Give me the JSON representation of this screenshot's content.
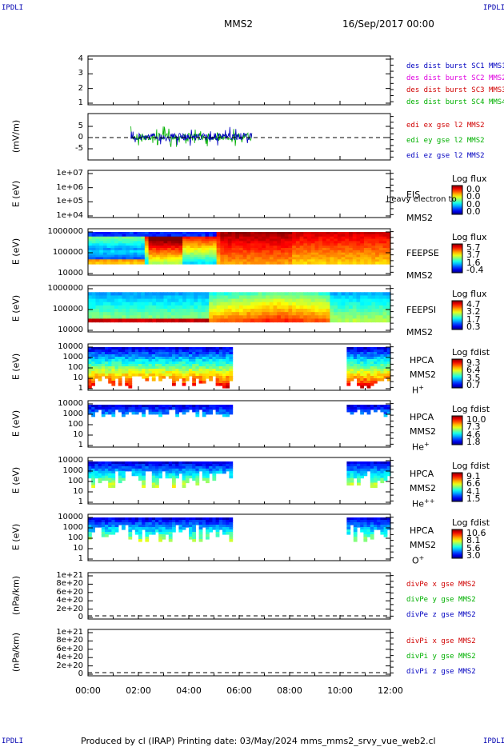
{
  "corners": {
    "tl": "IPDLI",
    "tr": "IPDLI",
    "bl": "IPDLI",
    "br": "IPDLI"
  },
  "header": {
    "spacecraft": "MMS2",
    "datetime": "16/Sep/2017 00:00"
  },
  "footer": {
    "text": "Produced by cl (IRAP)   Printing date: 03/May/2024   mms_mms2_srvy_vue_web2.cl"
  },
  "colors": {
    "red": "#d00000",
    "green": "#00b000",
    "blue": "#0000c0",
    "magenta": "#e000e0"
  },
  "chart_data": [
    {
      "id": "burst",
      "type": "line",
      "ylabel": "",
      "yticks": [
        "1",
        "2",
        "3",
        "4"
      ],
      "ylim": [
        1,
        4
      ],
      "legend": [
        "des dist burst SC1 MMS1",
        "des dist burst SC2 MMS2",
        "des dist burst SC3 MMS3",
        "des dist burst SC4 MMS4"
      ],
      "legend_colors": [
        "#0000c0",
        "#e000e0",
        "#d00000",
        "#00b000"
      ]
    },
    {
      "id": "edi",
      "type": "line",
      "ylabel": "(mV/m)",
      "yticks": [
        "-5",
        "0",
        "5"
      ],
      "ylim": [
        -8,
        8
      ],
      "legend": [
        "edi ex gse l2 MMS2",
        "edi ey gse l2 MMS2",
        "edi ez gse l2 MMS2"
      ],
      "legend_colors": [
        "#d00000",
        "#00b000",
        "#0000c0"
      ],
      "x_range_hours": [
        1.7,
        6.5
      ]
    },
    {
      "id": "eis",
      "type": "heatmap",
      "ylabel": "E (eV)",
      "yticks": [
        "1e+04",
        "1e+05",
        "1e+06",
        "1e+07"
      ],
      "side": [
        "EIS",
        "MMS2"
      ],
      "overlay": "heavy electron to",
      "cbar_title": "Log flux",
      "cbar_values": [
        "0.0",
        "0.0",
        "0.0",
        "0.0"
      ]
    },
    {
      "id": "feepse",
      "type": "heatmap",
      "ylabel": "E (eV)",
      "yticks": [
        "10000",
        "100000",
        "1000000"
      ],
      "side": [
        "FEEPSE",
        "MMS2"
      ],
      "cbar_title": "Log flux",
      "cbar_values": [
        "5.7",
        "3.7",
        "1.6",
        "-0.4"
      ]
    },
    {
      "id": "feepsi",
      "type": "heatmap",
      "ylabel": "E (eV)",
      "yticks": [
        "10000",
        "100000",
        "1000000"
      ],
      "side": [
        "FEEPSI",
        "MMS2"
      ],
      "cbar_title": "Log flux",
      "cbar_values": [
        "4.7",
        "3.2",
        "1.7",
        "0.3"
      ]
    },
    {
      "id": "hpca_h",
      "type": "heatmap",
      "ylabel": "E (eV)",
      "yticks": [
        "1",
        "10",
        "100",
        "1000",
        "10000"
      ],
      "side": [
        "HPCA",
        "MMS2",
        "H"
      ],
      "species_sup": "+",
      "cbar_title": "Log fdist",
      "cbar_values": [
        "9.3",
        "6.4",
        "3.5",
        "0.7"
      ]
    },
    {
      "id": "hpca_he",
      "type": "heatmap",
      "ylabel": "E (eV)",
      "yticks": [
        "1",
        "10",
        "100",
        "1000",
        "10000"
      ],
      "side": [
        "HPCA",
        "MMS2",
        "He"
      ],
      "species_sup": "+",
      "cbar_title": "Log fdist",
      "cbar_values": [
        "10.0",
        "7.3",
        "4.6",
        "1.8"
      ]
    },
    {
      "id": "hpca_hepp",
      "type": "heatmap",
      "ylabel": "E (eV)",
      "yticks": [
        "1",
        "10",
        "100",
        "1000",
        "10000"
      ],
      "side": [
        "HPCA",
        "MMS2",
        "He"
      ],
      "species_sup": "++",
      "cbar_title": "Log fdist",
      "cbar_values": [
        "9.1",
        "6.6",
        "4.1",
        "1.5"
      ]
    },
    {
      "id": "hpca_o",
      "type": "heatmap",
      "ylabel": "E (eV)",
      "yticks": [
        "1",
        "10",
        "100",
        "1000",
        "10000"
      ],
      "side": [
        "HPCA",
        "MMS2",
        "O"
      ],
      "species_sup": "+",
      "cbar_title": "Log fdist",
      "cbar_values": [
        "10.6",
        "8.1",
        "5.6",
        "3.0"
      ]
    },
    {
      "id": "divpe",
      "type": "line",
      "ylabel": "(nPa/km)",
      "yticks": [
        "0",
        "2e+20",
        "4e+20",
        "6e+20",
        "8e+20",
        "1e+21"
      ],
      "legend": [
        "divPe x gse MMS2",
        "divPe y gse MMS2",
        "divPe z gse MMS2"
      ],
      "legend_colors": [
        "#d00000",
        "#00b000",
        "#0000c0"
      ]
    },
    {
      "id": "divpi",
      "type": "line",
      "ylabel": "(nPa/km)",
      "yticks": [
        "0",
        "2e+20",
        "4e+20",
        "6e+20",
        "8e+20",
        "1e+21"
      ],
      "legend": [
        "divPi x gse MMS2",
        "divPi y gse MMS2",
        "divPi z gse MMS2"
      ],
      "legend_colors": [
        "#d00000",
        "#00b000",
        "#0000c0"
      ]
    }
  ],
  "xaxis": {
    "ticks": [
      "00:00",
      "02:00",
      "04:00",
      "06:00",
      "08:00",
      "10:00",
      "12:00"
    ],
    "range_hours": [
      0,
      12
    ]
  }
}
